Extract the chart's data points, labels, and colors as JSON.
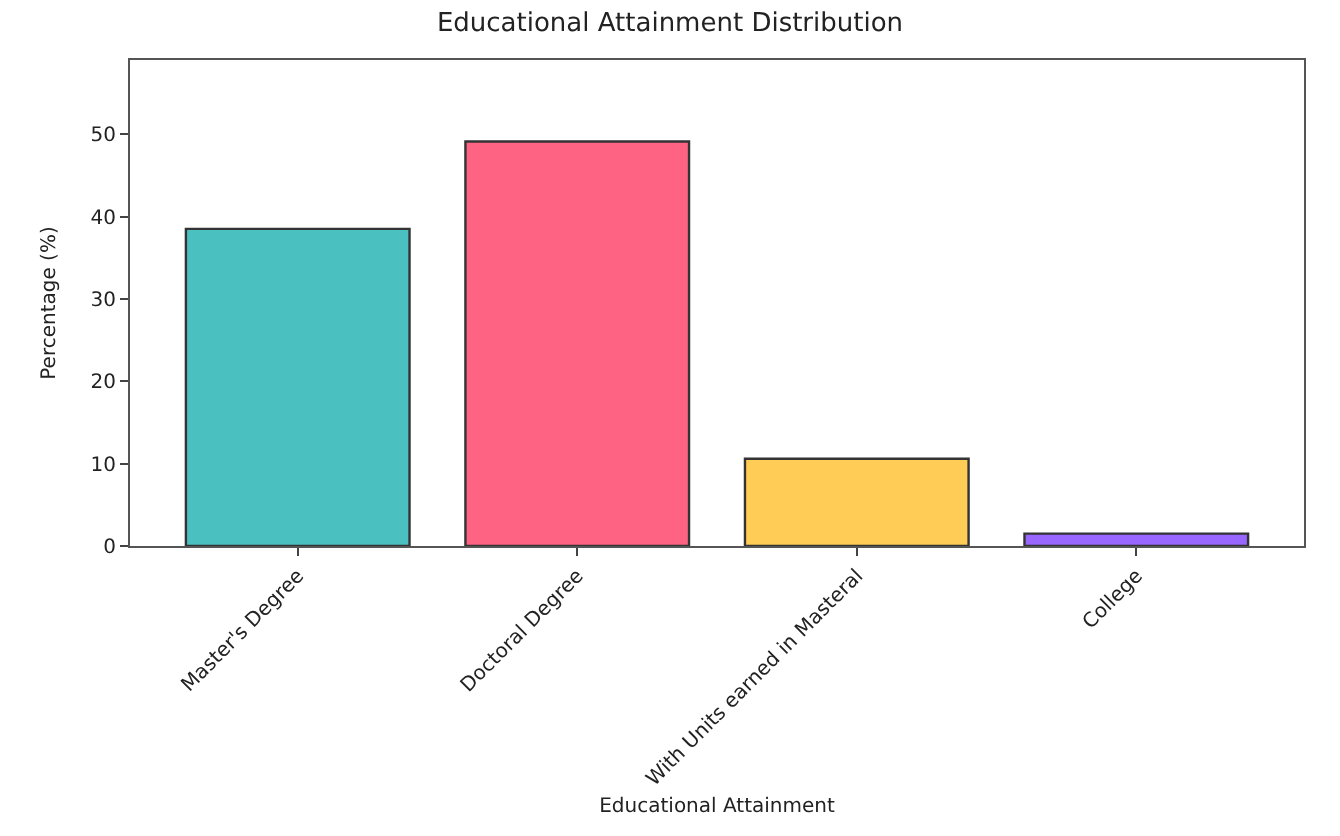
{
  "chart_data": {
    "type": "bar",
    "title": "Educational Attainment Distribution",
    "xlabel": "Educational Attainment",
    "ylabel": "Percentage (%)",
    "categories": [
      "Master's Degree",
      "Doctoral Degree",
      "With Units earned in Masteral",
      "College"
    ],
    "values": [
      38.5,
      49.1,
      10.6,
      1.5
    ],
    "colors": [
      "#4bc0c0",
      "#ff6384",
      "#ffcd56",
      "#9966ff"
    ],
    "ylim": [
      0,
      59
    ],
    "yticks": [
      0,
      10,
      20,
      30,
      40,
      50
    ]
  }
}
